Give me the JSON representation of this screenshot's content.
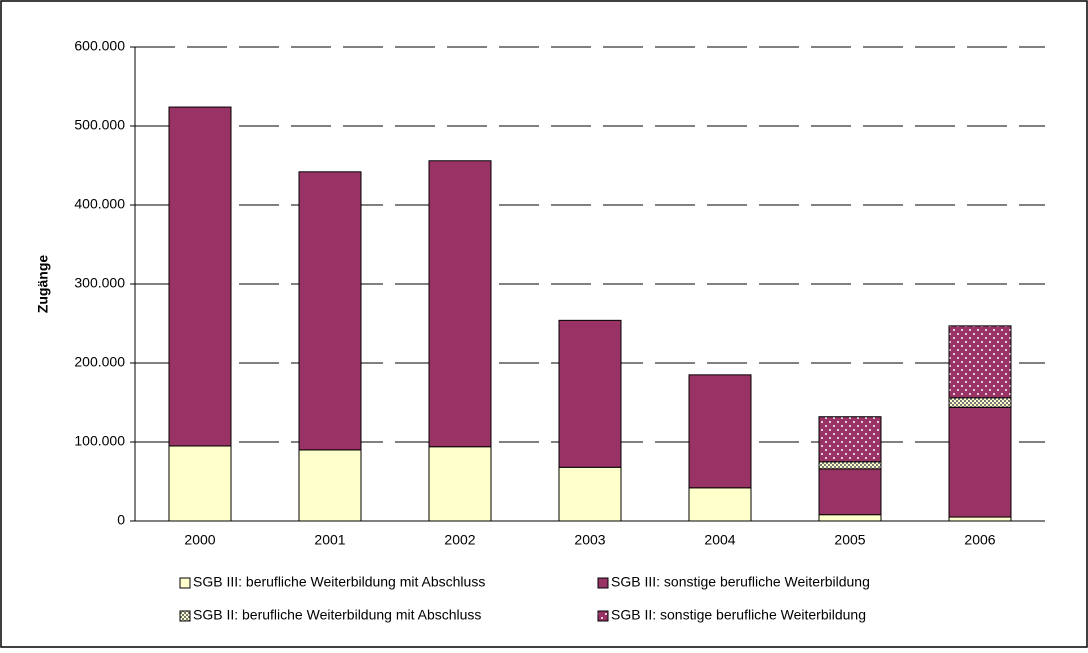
{
  "chart_data": {
    "type": "stacked-bar",
    "y_label": "Zugänge",
    "categories": [
      "2000",
      "2001",
      "2002",
      "2003",
      "2004",
      "2005",
      "2006"
    ],
    "series": [
      {
        "name": "SGB III: berufliche Weiterbildung mit Abschluss",
        "color": "#ffffcc",
        "pattern": "none",
        "values": [
          95000,
          90000,
          94000,
          68000,
          42000,
          8000,
          5000
        ]
      },
      {
        "name": "SGB III: sonstige berufliche Weiterbildung",
        "color": "#993366",
        "pattern": "none",
        "values": [
          429000,
          352000,
          362000,
          186000,
          143000,
          58000,
          139000
        ]
      },
      {
        "name": "SGB II:  berufliche Weiterbildung mit Abschluss",
        "color": "#ffffcc",
        "pattern": "checker",
        "values": [
          null,
          null,
          null,
          null,
          null,
          9000,
          12000
        ]
      },
      {
        "name": "SGB II: sonstige berufliche Weiterbildung",
        "color": "#993366",
        "pattern": "dots",
        "values": [
          null,
          null,
          null,
          null,
          null,
          57000,
          91000
        ]
      }
    ],
    "ylim": [
      0,
      600000
    ],
    "yticks": [
      0,
      {
        "value": 100000,
        "label": "100.000"
      },
      {
        "value": 200000,
        "label": "200.000"
      },
      {
        "value": 300000,
        "label": "300.000"
      },
      {
        "value": 400000,
        "label": "400.000"
      },
      {
        "value": 500000,
        "label": "500.000"
      },
      {
        "value": 600000,
        "label": "600.000"
      }
    ],
    "grid": true,
    "legend": "bottom"
  }
}
